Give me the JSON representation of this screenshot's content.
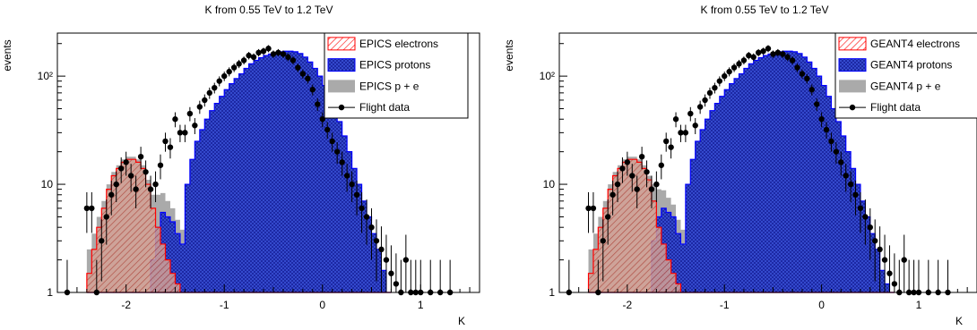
{
  "chart_data": [
    {
      "type": "bar",
      "title": "K from 0.55 TeV to 1.2 TeV",
      "xlabel": "K",
      "ylabel": "events",
      "log_y": true,
      "xlim": [
        -2.7,
        1.6
      ],
      "ylim": [
        1,
        250
      ],
      "x_ticks": [
        "-2",
        "-1",
        "0",
        "1"
      ],
      "y_ticks": [
        "1",
        "10",
        "10²"
      ],
      "legend_position": "top-right",
      "series": [
        {
          "name": "EPICS electrons",
          "hist": "red",
          "color": "#ff0000",
          "hatch": "diagonal"
        },
        {
          "name": "EPICS protons",
          "hist": "blue",
          "color": "#0000ff",
          "hatch": "cross"
        },
        {
          "name": "EPICS p + e",
          "hist": "gray",
          "color": "#aaaaaa",
          "hatch": "solid"
        },
        {
          "name": "Flight data",
          "hist": "points",
          "color": "#000000",
          "marker": "dot"
        }
      ],
      "bin_width": 0.05,
      "x_start": -2.4,
      "electrons": [
        1.5,
        2.5,
        4,
        6,
        9,
        12,
        14,
        16,
        17,
        17,
        16,
        14,
        10,
        6,
        4,
        2.8,
        2,
        1.5,
        1.2,
        1
      ],
      "protons": [
        1,
        1,
        1,
        1,
        1,
        1,
        1,
        1,
        1,
        1,
        1,
        1,
        1,
        2,
        4,
        5.5,
        5,
        4.5,
        3.5,
        2.8,
        10,
        17,
        25,
        32,
        40,
        48,
        56,
        65,
        75,
        85,
        95,
        105,
        118,
        130,
        140,
        148,
        155,
        160,
        165,
        168,
        170,
        170,
        168,
        162,
        150,
        135,
        118,
        100,
        82,
        65,
        50,
        38,
        28,
        20,
        14,
        10,
        7,
        5,
        3.5,
        2.5,
        1.6,
        1
      ],
      "points_x": [
        -2.6,
        -2.4,
        -2.35,
        -2.3,
        -2.25,
        -2.2,
        -2.15,
        -2.1,
        -2.05,
        -2.0,
        -1.95,
        -1.9,
        -1.85,
        -1.8,
        -1.75,
        -1.7,
        -1.65,
        -1.6,
        -1.55,
        -1.5,
        -1.45,
        -1.4,
        -1.35,
        -1.3,
        -1.25,
        -1.2,
        -1.15,
        -1.1,
        -1.05,
        -1.0,
        -0.95,
        -0.9,
        -0.85,
        -0.8,
        -0.75,
        -0.7,
        -0.65,
        -0.6,
        -0.55,
        -0.5,
        -0.45,
        -0.4,
        -0.35,
        -0.3,
        -0.25,
        -0.2,
        -0.15,
        -0.1,
        -0.05,
        0.0,
        0.05,
        0.1,
        0.15,
        0.2,
        0.25,
        0.3,
        0.35,
        0.4,
        0.45,
        0.5,
        0.55,
        0.6,
        0.65,
        0.7,
        0.75,
        0.8,
        0.85,
        0.9,
        0.95,
        1.0,
        1.1,
        1.2,
        1.3
      ],
      "points_y": [
        1,
        6,
        6,
        1,
        3,
        5,
        8,
        10,
        14,
        16,
        12,
        9,
        18,
        13,
        9,
        10,
        15,
        25,
        22,
        40,
        30,
        30,
        45,
        35,
        52,
        60,
        70,
        78,
        90,
        100,
        110,
        120,
        130,
        140,
        155,
        150,
        165,
        170,
        180,
        160,
        165,
        160,
        150,
        140,
        120,
        105,
        95,
        75,
        55,
        40,
        32,
        25,
        20,
        16,
        12,
        10,
        8,
        6,
        5,
        4,
        3,
        2.5,
        2,
        1.5,
        1.2,
        1,
        2,
        1,
        1,
        1,
        1,
        1,
        1
      ]
    },
    {
      "type": "bar",
      "title": "K from 0.55 TeV to 1.2 TeV",
      "xlabel": "K",
      "ylabel": "events",
      "log_y": true,
      "xlim": [
        -2.7,
        1.6
      ],
      "ylim": [
        1,
        250
      ],
      "x_ticks": [
        "-2",
        "-1",
        "0",
        "1"
      ],
      "y_ticks": [
        "1",
        "10",
        "10²"
      ],
      "legend_position": "top-right",
      "series": [
        {
          "name": "GEANT4 electrons",
          "hist": "red",
          "color": "#ff0000",
          "hatch": "diagonal"
        },
        {
          "name": "GEANT4 protons",
          "hist": "blue",
          "color": "#0000ff",
          "hatch": "cross"
        },
        {
          "name": "GEANT4 p + e",
          "hist": "gray",
          "color": "#aaaaaa",
          "hatch": "solid"
        },
        {
          "name": "Flight data",
          "hist": "points",
          "color": "#000000",
          "marker": "dot"
        }
      ],
      "bin_width": 0.05,
      "x_start": -2.4,
      "electrons": [
        1.5,
        2.5,
        4,
        6,
        9,
        12,
        14,
        16,
        17,
        17,
        16,
        14,
        11,
        7,
        4,
        2.8,
        2,
        1.5,
        1.2,
        1
      ],
      "protons": [
        1,
        1,
        1,
        1,
        1,
        1,
        1,
        1,
        1,
        1,
        1,
        1,
        1,
        3,
        5,
        6,
        5.5,
        5,
        3.5,
        2.8,
        10,
        17,
        25,
        32,
        40,
        48,
        56,
        65,
        75,
        85,
        95,
        105,
        118,
        130,
        140,
        148,
        155,
        160,
        165,
        168,
        170,
        170,
        168,
        162,
        150,
        135,
        118,
        100,
        82,
        65,
        50,
        38,
        28,
        20,
        14,
        10,
        7,
        5,
        3.5,
        2.5,
        1.6,
        1.2,
        1
      ],
      "points_x": [
        -2.6,
        -2.4,
        -2.35,
        -2.3,
        -2.25,
        -2.2,
        -2.15,
        -2.1,
        -2.05,
        -2.0,
        -1.95,
        -1.9,
        -1.85,
        -1.8,
        -1.75,
        -1.7,
        -1.65,
        -1.6,
        -1.55,
        -1.5,
        -1.45,
        -1.4,
        -1.35,
        -1.3,
        -1.25,
        -1.2,
        -1.15,
        -1.1,
        -1.05,
        -1.0,
        -0.95,
        -0.9,
        -0.85,
        -0.8,
        -0.75,
        -0.7,
        -0.65,
        -0.6,
        -0.55,
        -0.5,
        -0.45,
        -0.4,
        -0.35,
        -0.3,
        -0.25,
        -0.2,
        -0.15,
        -0.1,
        -0.05,
        0.0,
        0.05,
        0.1,
        0.15,
        0.2,
        0.25,
        0.3,
        0.35,
        0.4,
        0.45,
        0.5,
        0.55,
        0.6,
        0.65,
        0.7,
        0.75,
        0.8,
        0.85,
        0.9,
        0.95,
        1.0,
        1.1,
        1.2,
        1.3
      ],
      "points_y": [
        1,
        6,
        6,
        1,
        3,
        5,
        8,
        10,
        14,
        16,
        12,
        9,
        18,
        13,
        9,
        10,
        15,
        25,
        22,
        40,
        30,
        30,
        45,
        35,
        52,
        60,
        70,
        78,
        90,
        100,
        110,
        120,
        130,
        140,
        155,
        150,
        165,
        170,
        180,
        160,
        165,
        160,
        150,
        140,
        120,
        105,
        95,
        75,
        55,
        40,
        32,
        25,
        20,
        16,
        12,
        10,
        8,
        6,
        5,
        4,
        3,
        2.5,
        2,
        1.5,
        1.2,
        1,
        2,
        1,
        1,
        1,
        1,
        1,
        1
      ]
    }
  ]
}
